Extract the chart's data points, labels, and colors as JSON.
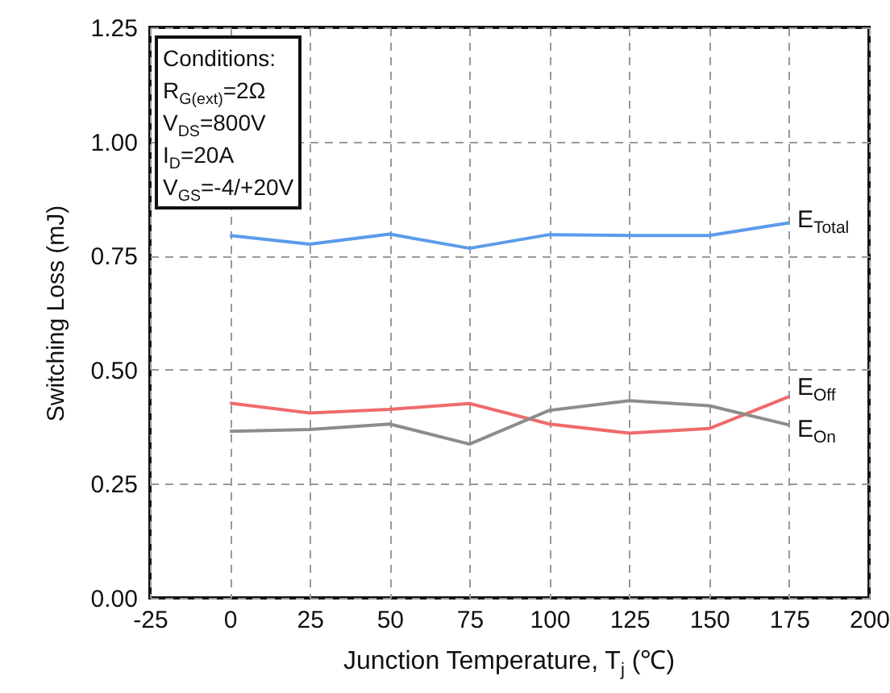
{
  "chart_data": {
    "type": "line",
    "xlabel": "Junction Temperature, T$_{j}$ (℃)",
    "ylabel": "Switching Loss (mJ)",
    "x": [
      0,
      25,
      50,
      75,
      100,
      125,
      150,
      175
    ],
    "series": [
      {
        "name": "E$_{Total}$",
        "color": "#5b9bea",
        "values": [
          0.794,
          0.775,
          0.797,
          0.766,
          0.796,
          0.794,
          0.794,
          0.822
        ]
      },
      {
        "name": "E$_{Off}$",
        "color": "#f06a6a",
        "values": [
          0.427,
          0.405,
          0.413,
          0.426,
          0.381,
          0.361,
          0.371,
          0.441
        ]
      },
      {
        "name": "E$_{On}$",
        "color": "#8c8c8c",
        "values": [
          0.365,
          0.369,
          0.381,
          0.337,
          0.411,
          0.432,
          0.421,
          0.379
        ]
      }
    ],
    "xlim": [
      -25,
      200
    ],
    "xticks": [
      -25,
      0,
      25,
      50,
      75,
      100,
      125,
      150,
      175,
      200
    ],
    "ylim": [
      0,
      1.25
    ],
    "yticks": [
      {
        "value": 0,
        "label": "0.00"
      },
      {
        "value": 0.25,
        "label": "0.25"
      },
      {
        "value": 0.5,
        "label": "0.50"
      },
      {
        "value": 0.75,
        "label": "0.75"
      },
      {
        "value": 1,
        "label": "1.00"
      },
      {
        "value": 1.25,
        "label": "1.25"
      }
    ],
    "grid": true,
    "line_style": "solid",
    "marker": "none",
    "annotations": [
      "Conditions:",
      "R$_{G(ext)}$=2Ω",
      "V$_{DS}$=800V",
      "I$_{D}$=20A",
      "V$_{GS}$=-4/+20V"
    ]
  }
}
